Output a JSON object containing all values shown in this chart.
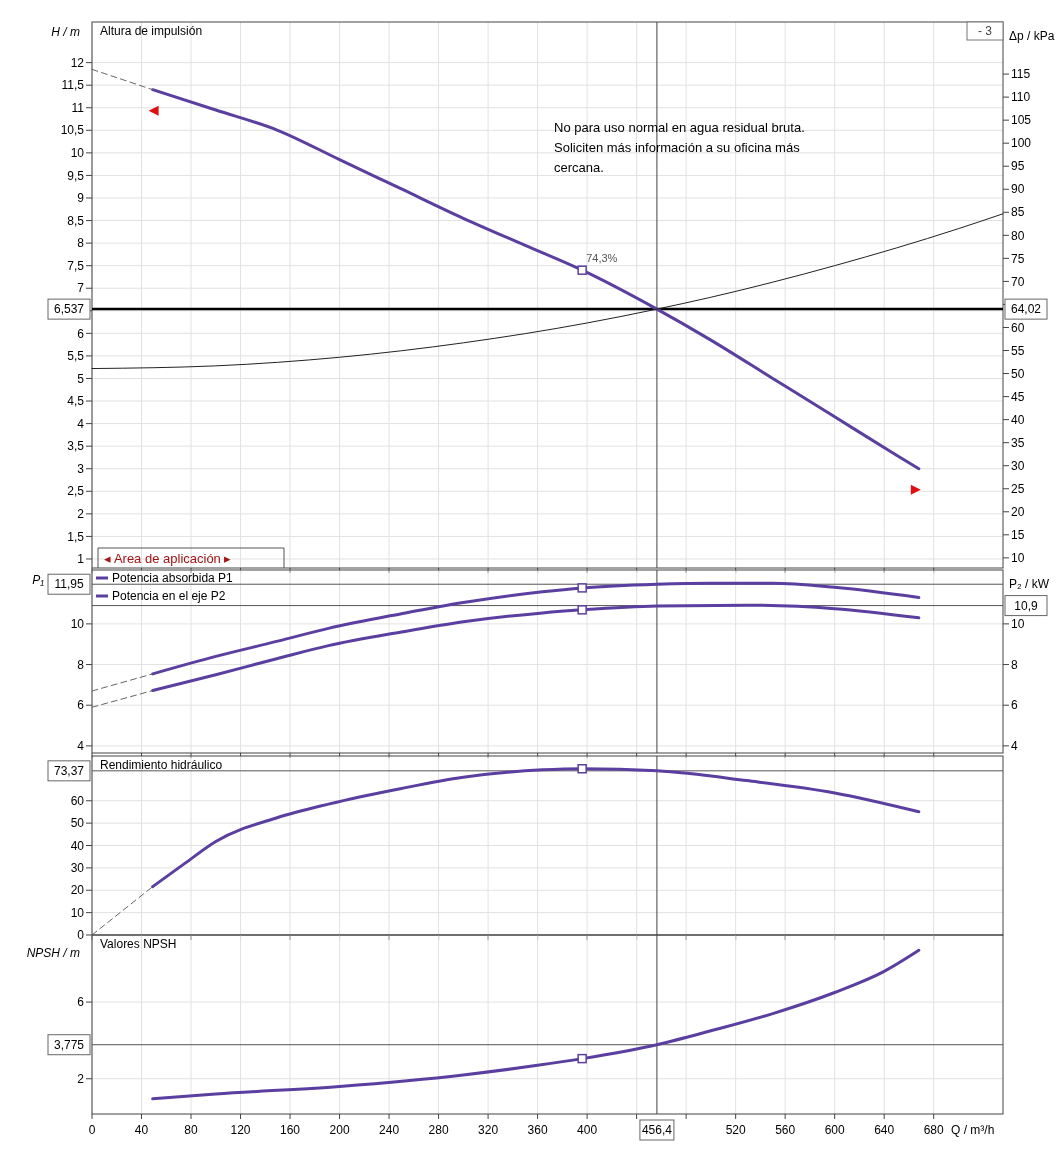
{
  "chart_data": [
    {
      "type": "line",
      "title": "Altura de impulsión",
      "ylabel": "H / m",
      "y2label": "Δp / kPa",
      "xlim": [
        0,
        736
      ],
      "xticks": [
        0,
        40,
        80,
        120,
        160,
        200,
        240,
        280,
        320,
        360,
        400,
        440,
        480,
        520,
        560,
        600,
        640,
        680
      ],
      "ylim": [
        0.8,
        12.9
      ],
      "yticks": [
        1,
        {
          "value": 1.5,
          "label": "1,5"
        },
        2,
        {
          "value": 2.5,
          "label": "2,5"
        },
        3,
        {
          "value": 3.5,
          "label": "3,5"
        },
        4,
        {
          "value": 4.5,
          "label": "4,5"
        },
        5,
        {
          "value": 5.5,
          "label": "5,5"
        },
        6,
        {
          "value": 6.5,
          "label": null
        },
        7,
        {
          "value": 7.5,
          "label": "7,5"
        },
        8,
        {
          "value": 8.5,
          "label": "8,5"
        },
        9,
        {
          "value": 9.5,
          "label": "9,5"
        },
        10,
        {
          "value": 10.5,
          "label": "10,5"
        },
        11,
        {
          "value": 11.5,
          "label": "11,5"
        },
        12
      ],
      "y2lim": [
        7.8,
        126.3
      ],
      "y2ticks": [
        10,
        15,
        20,
        25,
        30,
        35,
        40,
        45,
        50,
        55,
        60,
        {
          "value": 65,
          "label": null
        },
        70,
        75,
        80,
        85,
        90,
        95,
        100,
        105,
        110,
        115
      ],
      "tick_labels": "y",
      "grid": true,
      "line_style": "solid",
      "series": [
        {
          "color": "#5b3fa0",
          "x": [
            49,
            100,
            150,
            200,
            250,
            300,
            350,
            396,
            456.4,
            500,
            550,
            600,
            650,
            668
          ],
          "values": [
            11.4,
            10.95,
            10.5,
            9.85,
            9.2,
            8.55,
            7.95,
            7.4,
            6.537,
            5.85,
            5.0,
            4.15,
            3.3,
            3.0
          ]
        },
        {
          "color": "#666666",
          "line_style": "dashed",
          "x": [
            0,
            49
          ],
          "values": [
            11.85,
            11.4
          ]
        },
        {
          "color": "#222222",
          "x": [
            0,
            100,
            200,
            300,
            400,
            456.4,
            500,
            600,
            700,
            736
          ],
          "values": [
            5.22,
            5.28,
            5.47,
            5.79,
            6.23,
            6.537,
            6.8,
            7.5,
            8.32,
            8.65
          ]
        },
        {
          "type": "scatter",
          "marker": "square",
          "color": "#5b3fa0",
          "x": [
            396
          ],
          "values": [
            7.4
          ]
        }
      ],
      "ref_lines": [
        {
          "axis": "y",
          "value": 6.537,
          "label": "6,537",
          "color": "#000000"
        },
        {
          "axis": "x",
          "value": 456.4,
          "color": "#444444"
        }
      ],
      "annotations": [
        {
          "text": "74,3%",
          "x": 396,
          "y": 7.4
        },
        {
          "text": "64,02",
          "x": 736,
          "y": 6.537
        },
        "No para uso normal en agua residual bruta. Soliciten más información a su oficina más cercana.",
        "◂ Area de aplicación ▸",
        "- 3"
      ]
    },
    {
      "type": "line",
      "ylabel": "P₁",
      "y2label": "P₂ / kW",
      "xlim": [
        0,
        736
      ],
      "xticks": [
        0,
        40,
        80,
        120,
        160,
        200,
        240,
        280,
        320,
        360,
        400,
        440,
        480,
        520,
        560,
        600,
        640,
        680
      ],
      "ylim": [
        3.65,
        12.65
      ],
      "yticks": [
        4,
        6,
        8,
        10
      ],
      "y2lim": [
        3.65,
        12.65
      ],
      "y2ticks": [
        4,
        6,
        8,
        10
      ],
      "tick_labels": "y",
      "grid": true,
      "legend": "top left",
      "line_style": "solid",
      "series": [
        {
          "name": "Potencia absorbida P1",
          "color": "#5b3fa0",
          "x": [
            49,
            100,
            150,
            191,
            250,
            300,
            364,
            396,
            456.4,
            500,
            550,
            600,
            668
          ],
          "values": [
            7.54,
            8.4,
            9.15,
            9.78,
            10.5,
            11.05,
            11.58,
            11.77,
            11.95,
            12.0,
            12.0,
            11.8,
            11.3
          ]
        },
        {
          "name": "Potencia en el eje P2",
          "color": "#5b3fa0",
          "x": [
            49,
            100,
            150,
            191,
            250,
            300,
            364,
            396,
            456.4,
            529,
            600,
            668
          ],
          "values": [
            6.72,
            7.5,
            8.3,
            8.93,
            9.6,
            10.1,
            10.54,
            10.69,
            10.88,
            10.92,
            10.75,
            10.3
          ]
        },
        {
          "color": "#666666",
          "line_style": "dashed",
          "x": [
            0,
            49
          ],
          "values": [
            6.7,
            7.54
          ]
        },
        {
          "color": "#666666",
          "line_style": "dashed",
          "x": [
            0,
            49
          ],
          "values": [
            5.9,
            6.72
          ]
        },
        {
          "type": "scatter",
          "marker": "square",
          "color": "#5b3fa0",
          "x": [
            396,
            396
          ],
          "values": [
            11.77,
            10.69
          ]
        }
      ],
      "ref_lines": [
        {
          "axis": "y",
          "value": 11.95,
          "label": "11,95",
          "color": "#555555"
        },
        {
          "axis": "y2",
          "value": 10.9,
          "label": "10,9",
          "color": "#555555"
        },
        {
          "axis": "x",
          "value": 456.4,
          "color": "#444444"
        }
      ]
    },
    {
      "type": "line",
      "title": "Rendimiento hidráulico",
      "xlim": [
        0,
        736
      ],
      "xticks": [
        0,
        40,
        80,
        120,
        160,
        200,
        240,
        280,
        320,
        360,
        400,
        440,
        480,
        520,
        560,
        600,
        640,
        680
      ],
      "ylim": [
        0,
        80
      ],
      "yticks": [
        0,
        10,
        20,
        30,
        40,
        50,
        60
      ],
      "tick_labels": "y",
      "grid": true,
      "line_style": "solid",
      "series": [
        {
          "color": "#5b3fa0",
          "x": [
            49,
            75,
            100,
            150,
            191,
            250,
            300,
            364,
            396,
            456.4,
            529,
            600,
            668
          ],
          "values": [
            21.6,
            32,
            41.8,
            52.5,
            58.5,
            65.5,
            70.5,
            73.8,
            74.3,
            73.37,
            69.0,
            63.5,
            55.1
          ]
        },
        {
          "color": "#666666",
          "line_style": "dashed",
          "x": [
            0,
            49
          ],
          "values": [
            0,
            21.6
          ]
        },
        {
          "type": "scatter",
          "marker": "square",
          "color": "#5b3fa0",
          "x": [
            396
          ],
          "values": [
            74.3
          ]
        }
      ],
      "ref_lines": [
        {
          "axis": "y",
          "value": 73.37,
          "label": "73,37",
          "color": "#555555"
        },
        {
          "axis": "x",
          "value": 456.4,
          "color": "#444444"
        }
      ]
    },
    {
      "type": "line",
      "title": "Valores NPSH",
      "ylabel": "NPSH  / m",
      "xlabel": "Q / m³/h",
      "xlim": [
        0,
        736
      ],
      "ylim": [
        0.16,
        9.5
      ],
      "yticks": [
        2,
        6
      ],
      "grid": true,
      "line_style": "solid",
      "xticks": [
        0,
        40,
        80,
        120,
        160,
        200,
        240,
        280,
        320,
        360,
        400,
        {
          "value": 440,
          "label": null
        },
        {
          "value": 480,
          "label": null
        },
        520,
        560,
        600,
        640,
        680
      ],
      "series": [
        {
          "color": "#5b3fa0",
          "x": [
            49,
            100,
            200,
            300,
            360,
            396,
            456.4,
            500,
            550,
            600,
            640,
            668
          ],
          "values": [
            0.95,
            1.2,
            1.6,
            2.2,
            2.7,
            3.05,
            3.775,
            4.5,
            5.4,
            6.5,
            7.6,
            8.7
          ]
        },
        {
          "type": "scatter",
          "marker": "square",
          "color": "#5b3fa0",
          "x": [
            396
          ],
          "values": [
            3.05
          ]
        }
      ],
      "ref_lines": [
        {
          "axis": "y",
          "value": 3.775,
          "label": "3,775",
          "color": "#555555"
        },
        {
          "axis": "x",
          "value": 456.4,
          "label": "456,4",
          "color": "#444444"
        }
      ]
    }
  ]
}
